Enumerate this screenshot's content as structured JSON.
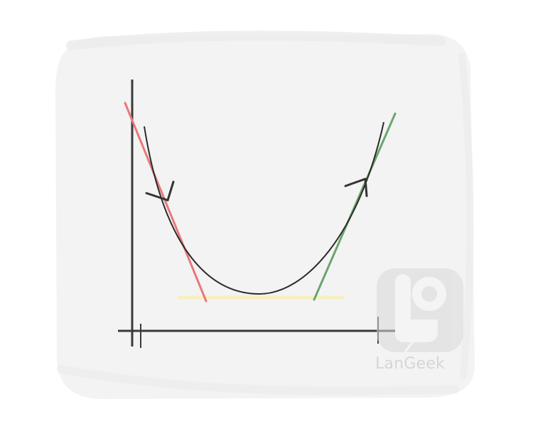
{
  "figure": {
    "curve": "parabola",
    "tangent_lines": [
      {
        "side": "left",
        "color": "#e8787a"
      },
      {
        "side": "right",
        "color": "#6aa56d"
      }
    ],
    "baseline_color": "#f6f0c2",
    "axis_color": "#3a3a3a",
    "curve_color": "#2b2b2b",
    "arrow_color": "#333333",
    "icons": [
      "tangent-arrow-left-icon",
      "tangent-arrow-right-icon",
      "langeek-logo-icon"
    ]
  },
  "watermark": {
    "brand": "LanGeek",
    "color": "#d6d6d6"
  }
}
